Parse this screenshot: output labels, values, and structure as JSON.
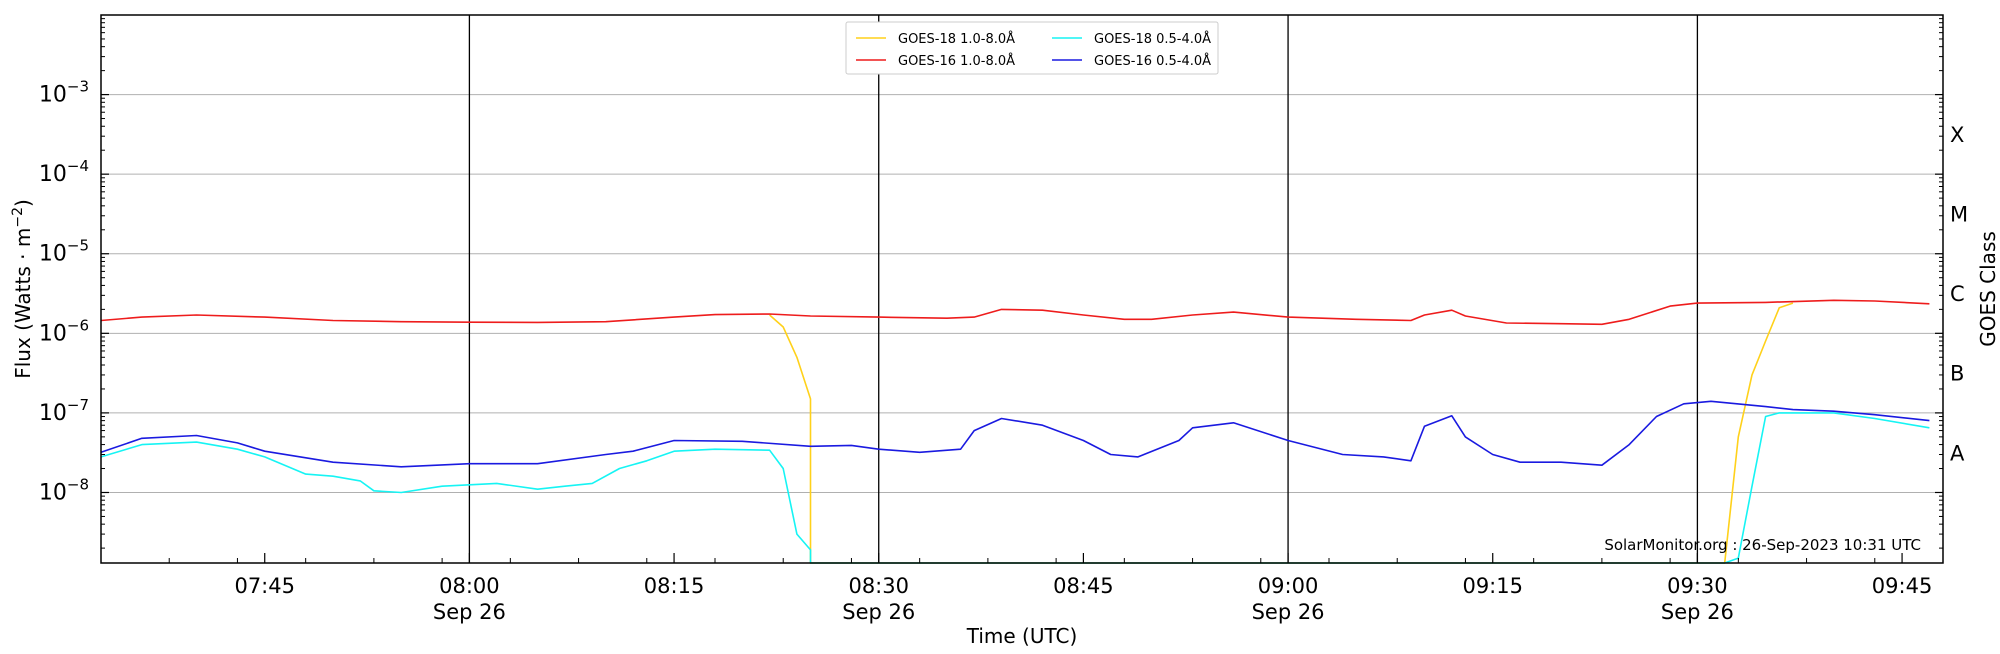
{
  "chart_data": {
    "type": "line",
    "title": "",
    "xlabel": "Time (UTC)",
    "ylabel": "Flux (Watts · m",
    "ylabel_superscript": "−2",
    "ylabel_close": ")",
    "y2label": "GOES Class",
    "y_scale": "log",
    "xlim": [
      "07:33",
      "09:48"
    ],
    "ylim": [
      1.3e-09,
      0.01
    ],
    "x_tick_labels": [
      {
        "time": "07:45",
        "date": ""
      },
      {
        "time": "08:00",
        "date": "Sep 26"
      },
      {
        "time": "08:15",
        "date": ""
      },
      {
        "time": "08:30",
        "date": "Sep 26"
      },
      {
        "time": "08:45",
        "date": ""
      },
      {
        "time": "09:00",
        "date": "Sep 26"
      },
      {
        "time": "09:15",
        "date": ""
      },
      {
        "time": "09:30",
        "date": "Sep 26"
      },
      {
        "time": "09:45",
        "date": ""
      }
    ],
    "vertical_lines": [
      "08:00",
      "08:30",
      "09:00",
      "09:30"
    ],
    "y_tick_labels": [
      {
        "base": "10",
        "exp": "−8",
        "value": 1e-08
      },
      {
        "base": "10",
        "exp": "−7",
        "value": 1e-07
      },
      {
        "base": "10",
        "exp": "−6",
        "value": 1e-06
      },
      {
        "base": "10",
        "exp": "−5",
        "value": 1e-05
      },
      {
        "base": "10",
        "exp": "−4",
        "value": 0.0001
      },
      {
        "base": "10",
        "exp": "−3",
        "value": 0.001
      }
    ],
    "goes_classes": [
      {
        "label": "A",
        "value": 1e-08
      },
      {
        "label": "B",
        "value": 1e-07
      },
      {
        "label": "C",
        "value": 1e-06
      },
      {
        "label": "M",
        "value": 1e-05
      },
      {
        "label": "X",
        "value": 0.0001
      }
    ],
    "grid": "horizontal",
    "legend_position": "top-center",
    "annotation": "SolarMonitor.org : 26-Sep-2023 10:31 UTC",
    "series": [
      {
        "name": "GOES-18 1.0-8.0Å",
        "color": "#ffd11a",
        "points": [
          [
            "08:22",
            1.7e-06
          ],
          [
            "08:23",
            1.2e-06
          ],
          [
            "08:24",
            5e-07
          ],
          [
            "08:25",
            1.5e-07
          ],
          [
            "08:25",
            1e-09
          ],
          [
            "09:32",
            1e-09
          ],
          [
            "09:33",
            5e-08
          ],
          [
            "09:34",
            3e-07
          ],
          [
            "09:35",
            8e-07
          ],
          [
            "09:36",
            2.1e-06
          ],
          [
            "09:37",
            2.4e-06
          ]
        ]
      },
      {
        "name": "GOES-16 1.0-8.0Å",
        "color": "#ee1c1c",
        "points": [
          [
            "07:33",
            1.45e-06
          ],
          [
            "07:36",
            1.6e-06
          ],
          [
            "07:40",
            1.7e-06
          ],
          [
            "07:45",
            1.6e-06
          ],
          [
            "07:50",
            1.45e-06
          ],
          [
            "07:55",
            1.4e-06
          ],
          [
            "08:00",
            1.38e-06
          ],
          [
            "08:05",
            1.37e-06
          ],
          [
            "08:10",
            1.4e-06
          ],
          [
            "08:15",
            1.6e-06
          ],
          [
            "08:18",
            1.72e-06
          ],
          [
            "08:22",
            1.75e-06
          ],
          [
            "08:25",
            1.65e-06
          ],
          [
            "08:30",
            1.6e-06
          ],
          [
            "08:35",
            1.55e-06
          ],
          [
            "08:37",
            1.6e-06
          ],
          [
            "08:39",
            2e-06
          ],
          [
            "08:42",
            1.95e-06
          ],
          [
            "08:45",
            1.7e-06
          ],
          [
            "08:48",
            1.5e-06
          ],
          [
            "08:50",
            1.5e-06
          ],
          [
            "08:53",
            1.7e-06
          ],
          [
            "08:56",
            1.85e-06
          ],
          [
            "09:00",
            1.6e-06
          ],
          [
            "09:05",
            1.5e-06
          ],
          [
            "09:09",
            1.45e-06
          ],
          [
            "09:10",
            1.7e-06
          ],
          [
            "09:12",
            1.95e-06
          ],
          [
            "09:13",
            1.65e-06
          ],
          [
            "09:16",
            1.35e-06
          ],
          [
            "09:20",
            1.32e-06
          ],
          [
            "09:23",
            1.3e-06
          ],
          [
            "09:25",
            1.5e-06
          ],
          [
            "09:28",
            2.2e-06
          ],
          [
            "09:30",
            2.4e-06
          ],
          [
            "09:35",
            2.45e-06
          ],
          [
            "09:40",
            2.6e-06
          ],
          [
            "09:43",
            2.55e-06
          ],
          [
            "09:47",
            2.35e-06
          ]
        ]
      },
      {
        "name": "GOES-18 0.5-4.0Å",
        "color": "#16f4f4",
        "points": [
          [
            "07:33",
            2.8e-08
          ],
          [
            "07:36",
            4e-08
          ],
          [
            "07:40",
            4.3e-08
          ],
          [
            "07:43",
            3.5e-08
          ],
          [
            "07:45",
            2.8e-08
          ],
          [
            "07:48",
            1.7e-08
          ],
          [
            "07:50",
            1.6e-08
          ],
          [
            "07:52",
            1.4e-08
          ],
          [
            "07:53",
            1.05e-08
          ],
          [
            "07:55",
            1e-08
          ],
          [
            "07:58",
            1.2e-08
          ],
          [
            "08:00",
            1.25e-08
          ],
          [
            "08:02",
            1.3e-08
          ],
          [
            "08:05",
            1.1e-08
          ],
          [
            "08:07",
            1.2e-08
          ],
          [
            "08:09",
            1.3e-08
          ],
          [
            "08:11",
            2e-08
          ],
          [
            "08:13",
            2.5e-08
          ],
          [
            "08:15",
            3.3e-08
          ],
          [
            "08:18",
            3.5e-08
          ],
          [
            "08:22",
            3.4e-08
          ],
          [
            "08:23",
            2e-08
          ],
          [
            "08:24",
            3e-09
          ],
          [
            "08:25",
            1.9e-09
          ],
          [
            "08:25",
            1e-09
          ],
          [
            "09:32",
            1e-09
          ],
          [
            "09:33",
            1.5e-09
          ],
          [
            "09:34",
            1.2e-08
          ],
          [
            "09:35",
            9e-08
          ],
          [
            "09:36",
            1e-07
          ],
          [
            "09:40",
            1e-07
          ],
          [
            "09:43",
            8.5e-08
          ],
          [
            "09:47",
            6.5e-08
          ]
        ]
      },
      {
        "name": "GOES-16 0.5-4.0Å",
        "color": "#1a1ae0",
        "points": [
          [
            "07:33",
            3.2e-08
          ],
          [
            "07:36",
            4.8e-08
          ],
          [
            "07:40",
            5.2e-08
          ],
          [
            "07:43",
            4.2e-08
          ],
          [
            "07:45",
            3.3e-08
          ],
          [
            "07:50",
            2.4e-08
          ],
          [
            "07:55",
            2.1e-08
          ],
          [
            "08:00",
            2.3e-08
          ],
          [
            "08:05",
            2.3e-08
          ],
          [
            "08:10",
            3e-08
          ],
          [
            "08:12",
            3.3e-08
          ],
          [
            "08:15",
            4.5e-08
          ],
          [
            "08:20",
            4.4e-08
          ],
          [
            "08:25",
            3.8e-08
          ],
          [
            "08:28",
            3.9e-08
          ],
          [
            "08:30",
            3.5e-08
          ],
          [
            "08:33",
            3.2e-08
          ],
          [
            "08:36",
            3.5e-08
          ],
          [
            "08:37",
            6e-08
          ],
          [
            "08:39",
            8.5e-08
          ],
          [
            "08:42",
            7e-08
          ],
          [
            "08:45",
            4.5e-08
          ],
          [
            "08:47",
            3e-08
          ],
          [
            "08:49",
            2.8e-08
          ],
          [
            "08:52",
            4.5e-08
          ],
          [
            "08:53",
            6.5e-08
          ],
          [
            "08:56",
            7.5e-08
          ],
          [
            "09:00",
            4.5e-08
          ],
          [
            "09:04",
            3e-08
          ],
          [
            "09:07",
            2.8e-08
          ],
          [
            "09:09",
            2.5e-08
          ],
          [
            "09:10",
            6.8e-08
          ],
          [
            "09:12",
            9.2e-08
          ],
          [
            "09:13",
            5e-08
          ],
          [
            "09:15",
            3e-08
          ],
          [
            "09:17",
            2.4e-08
          ],
          [
            "09:20",
            2.4e-08
          ],
          [
            "09:23",
            2.2e-08
          ],
          [
            "09:25",
            4e-08
          ],
          [
            "09:27",
            9e-08
          ],
          [
            "09:29",
            1.3e-07
          ],
          [
            "09:31",
            1.4e-07
          ],
          [
            "09:35",
            1.2e-07
          ],
          [
            "09:37",
            1.1e-07
          ],
          [
            "09:40",
            1.05e-07
          ],
          [
            "09:43",
            9.5e-08
          ],
          [
            "09:47",
            8e-08
          ]
        ]
      }
    ]
  }
}
